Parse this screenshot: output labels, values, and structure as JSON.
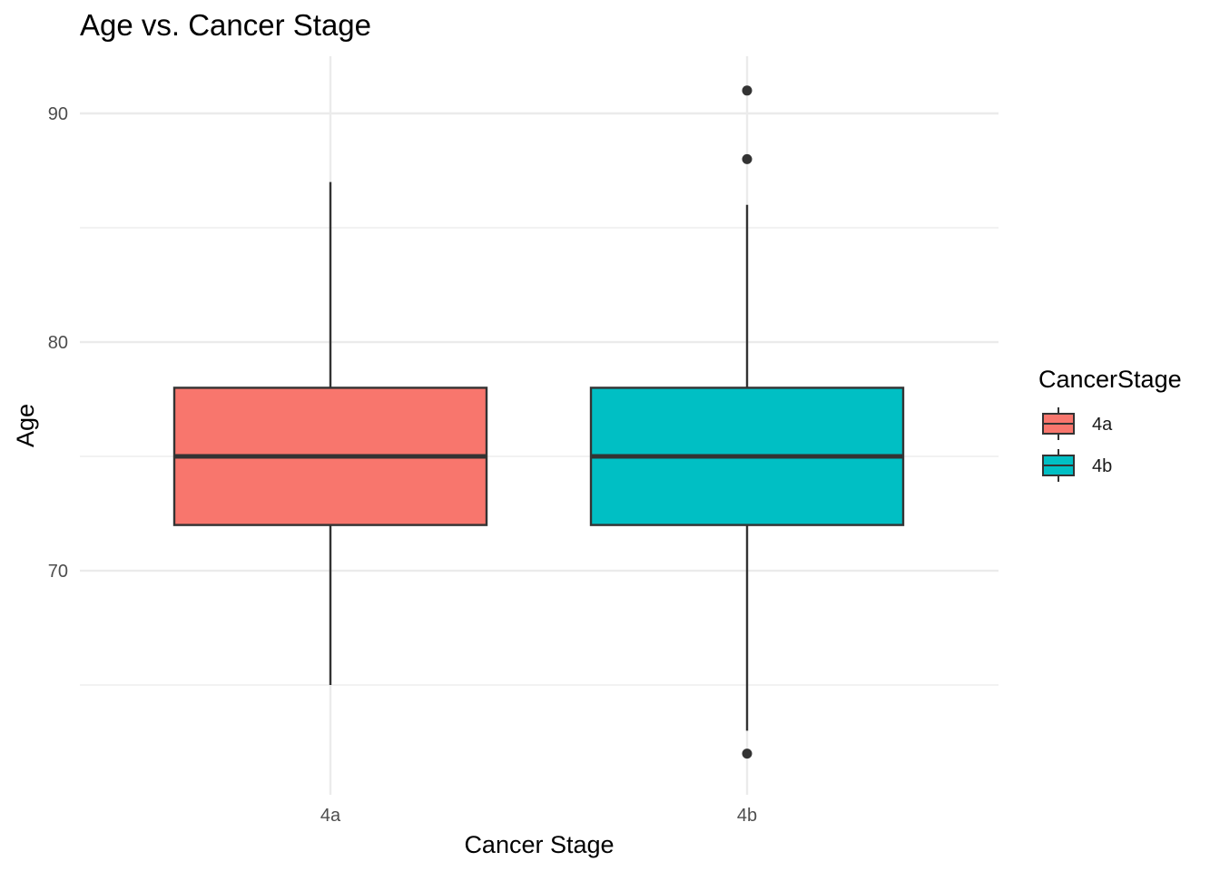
{
  "chart_data": {
    "type": "box",
    "title": "Age vs. Cancer Stage",
    "xlabel": "Cancer Stage",
    "ylabel": "Age",
    "categories": [
      "4a",
      "4b"
    ],
    "y_ticks": [
      70,
      80,
      90
    ],
    "ylim": [
      60.2,
      92.5
    ],
    "grid": true,
    "legend": {
      "title": "CancerStage",
      "position": "right",
      "entries": [
        "4a",
        "4b"
      ]
    },
    "colors": {
      "4a": "#F8766D",
      "4b": "#00BFC4",
      "outline": "#333333",
      "grid": "#ebebeb"
    },
    "boxes": [
      {
        "category": "4a",
        "min": 65,
        "q1": 72,
        "median": 75,
        "q3": 78,
        "max": 87,
        "outliers": []
      },
      {
        "category": "4b",
        "min": 63,
        "q1": 72,
        "median": 75,
        "q3": 78,
        "max": 86,
        "outliers": [
          91,
          88,
          62
        ]
      }
    ]
  }
}
